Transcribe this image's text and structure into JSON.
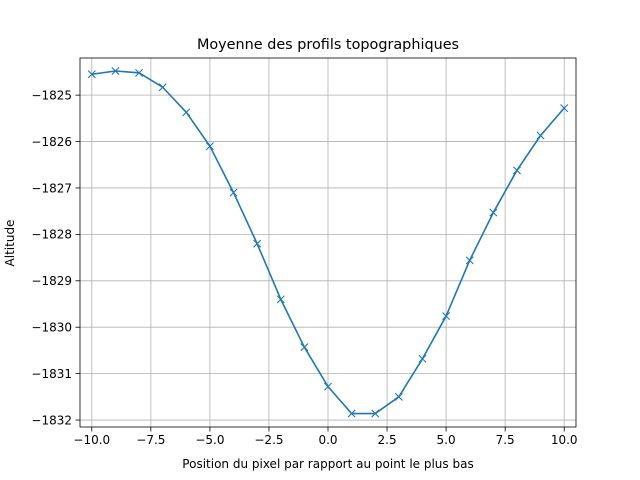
{
  "chart_data": {
    "type": "line",
    "title": "Moyenne des profils topographiques",
    "xlabel": "Position du pixel par rapport au point le plus bas",
    "ylabel": "Altitude",
    "xlim": [
      -10.5,
      10.5
    ],
    "ylim": [
      -1832.15,
      -1824.2
    ],
    "xticks": [
      -10.0,
      -7.5,
      -5.0,
      -2.5,
      0.0,
      2.5,
      5.0,
      7.5,
      10.0
    ],
    "xtick_labels": [
      "−10.0",
      "−7.5",
      "−5.0",
      "−2.5",
      "0.0",
      "2.5",
      "5.0",
      "7.5",
      "10.0"
    ],
    "yticks": [
      -1825,
      -1826,
      -1827,
      -1828,
      -1829,
      -1830,
      -1831,
      -1832
    ],
    "ytick_labels": [
      "−1825",
      "−1826",
      "−1827",
      "−1828",
      "−1829",
      "−1830",
      "−1831",
      "−1832"
    ],
    "grid": true,
    "marker": "x",
    "color": "#1f77b4",
    "series": [
      {
        "x": [
          -10,
          -9,
          -8,
          -7,
          -6,
          -5,
          -4,
          -3,
          -2,
          -1,
          0,
          1,
          2,
          3,
          4,
          5,
          6,
          7,
          8,
          9,
          10
        ],
        "y": [
          -1824.55,
          -1824.48,
          -1824.52,
          -1824.83,
          -1825.37,
          -1826.1,
          -1827.1,
          -1828.2,
          -1829.4,
          -1830.43,
          -1831.28,
          -1831.86,
          -1831.86,
          -1831.5,
          -1830.68,
          -1829.76,
          -1828.56,
          -1827.53,
          -1826.62,
          -1825.87,
          -1825.28
        ]
      }
    ]
  }
}
